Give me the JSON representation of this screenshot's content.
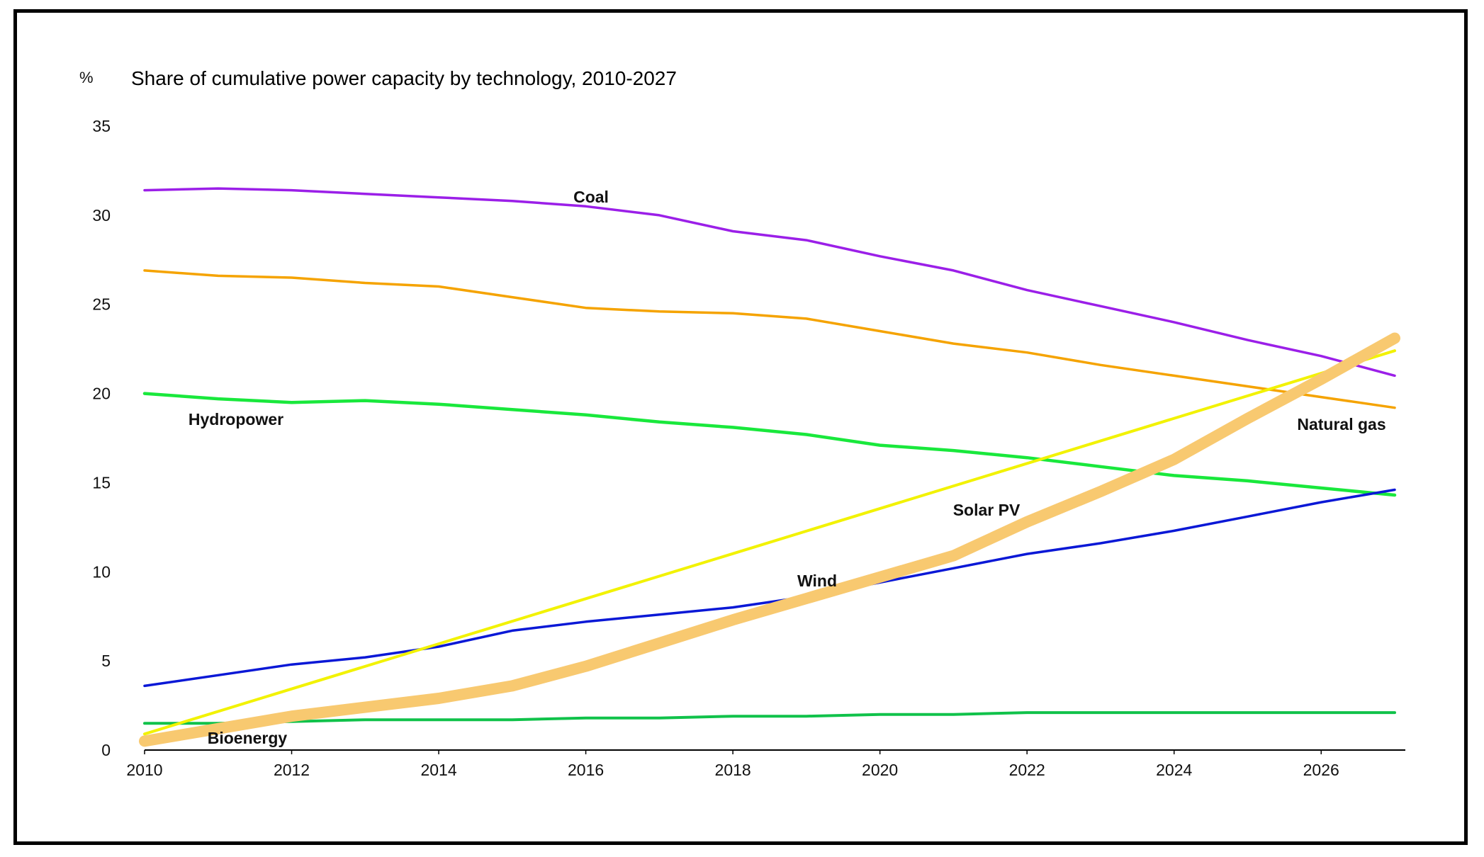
{
  "chart_data": {
    "type": "line",
    "title": "Share of cumulative power capacity by technology, 2010-2027",
    "ylabel": "%",
    "xlabel": "",
    "xlim": [
      2010,
      2027
    ],
    "ylim": [
      0,
      35
    ],
    "xticks": [
      2010,
      2012,
      2014,
      2016,
      2018,
      2020,
      2022,
      2024,
      2026
    ],
    "yticks": [
      0,
      5,
      10,
      15,
      20,
      25,
      30,
      35
    ],
    "grid": false,
    "x": [
      2010,
      2011,
      2012,
      2013,
      2014,
      2015,
      2016,
      2017,
      2018,
      2019,
      2020,
      2021,
      2022,
      2023,
      2024,
      2025,
      2026,
      2027
    ],
    "series": [
      {
        "name": "Coal",
        "color": "#9B1FE8",
        "values": [
          31.4,
          31.5,
          31.4,
          31.2,
          31.0,
          30.8,
          30.5,
          30.0,
          29.1,
          28.6,
          27.7,
          26.9,
          25.8,
          24.9,
          24.0,
          23.0,
          22.1,
          21.0
        ]
      },
      {
        "name": "Natural gas",
        "color": "#F5A300",
        "values": [
          26.9,
          26.6,
          26.5,
          26.2,
          26.0,
          25.4,
          24.8,
          24.6,
          24.5,
          24.2,
          23.5,
          22.8,
          22.3,
          21.6,
          21.0,
          20.4,
          19.8,
          19.2
        ]
      },
      {
        "name": "Hydropower",
        "color": "#19E83C",
        "values": [
          20.0,
          19.7,
          19.5,
          19.6,
          19.4,
          19.1,
          18.8,
          18.4,
          18.1,
          17.7,
          17.1,
          16.8,
          16.4,
          15.9,
          15.4,
          15.1,
          14.7,
          14.3
        ]
      },
      {
        "name": "Wind",
        "color": "#0A18D6",
        "values": [
          3.6,
          4.2,
          4.8,
          5.2,
          5.8,
          6.7,
          7.2,
          7.6,
          8.0,
          8.6,
          9.4,
          10.2,
          11.0,
          11.6,
          12.3,
          13.1,
          13.9,
          14.6
        ]
      },
      {
        "name": "Solar PV",
        "color": "#F8C970",
        "values": [
          0.5,
          1.2,
          1.9,
          2.4,
          2.9,
          3.6,
          4.7,
          6.0,
          7.3,
          8.5,
          9.7,
          10.9,
          12.8,
          14.5,
          16.3,
          18.6,
          20.8,
          23.1
        ]
      },
      {
        "name": "Bioenergy",
        "color": "#10C24A",
        "values": [
          1.5,
          1.5,
          1.6,
          1.7,
          1.7,
          1.7,
          1.8,
          1.8,
          1.9,
          1.9,
          2.0,
          2.0,
          2.1,
          2.1,
          2.1,
          2.1,
          2.1,
          2.1
        ]
      }
    ],
    "annotation_lines": [
      {
        "color": "#F2F200",
        "x": [
          2010,
          2027
        ],
        "values": [
          0.9,
          22.4
        ]
      }
    ]
  }
}
